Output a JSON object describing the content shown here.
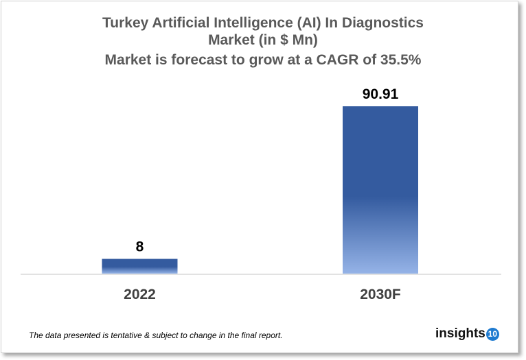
{
  "chart_data": {
    "type": "bar",
    "title": [
      "Turkey Artificial Intelligence (AI) In Diagnostics",
      "Market (in $ Mn)"
    ],
    "subtitle": "Market is forecast to grow at a CAGR of 35.5%",
    "categories": [
      "2022",
      "2030F"
    ],
    "values": [
      8,
      90.91
    ],
    "data_labels": [
      "8",
      "90.91"
    ],
    "xlabel": "",
    "ylabel": "",
    "ylim": [
      0,
      90.91
    ],
    "grid": false,
    "colors": {
      "bar_top": "#345b9f",
      "bar_bottom": "#95b3e7"
    }
  },
  "footnote": "The data presented is tentative & subject to change in the final report.",
  "logo": {
    "text": "insights",
    "badge": "10",
    "badge_color": "#1f7bd0"
  }
}
